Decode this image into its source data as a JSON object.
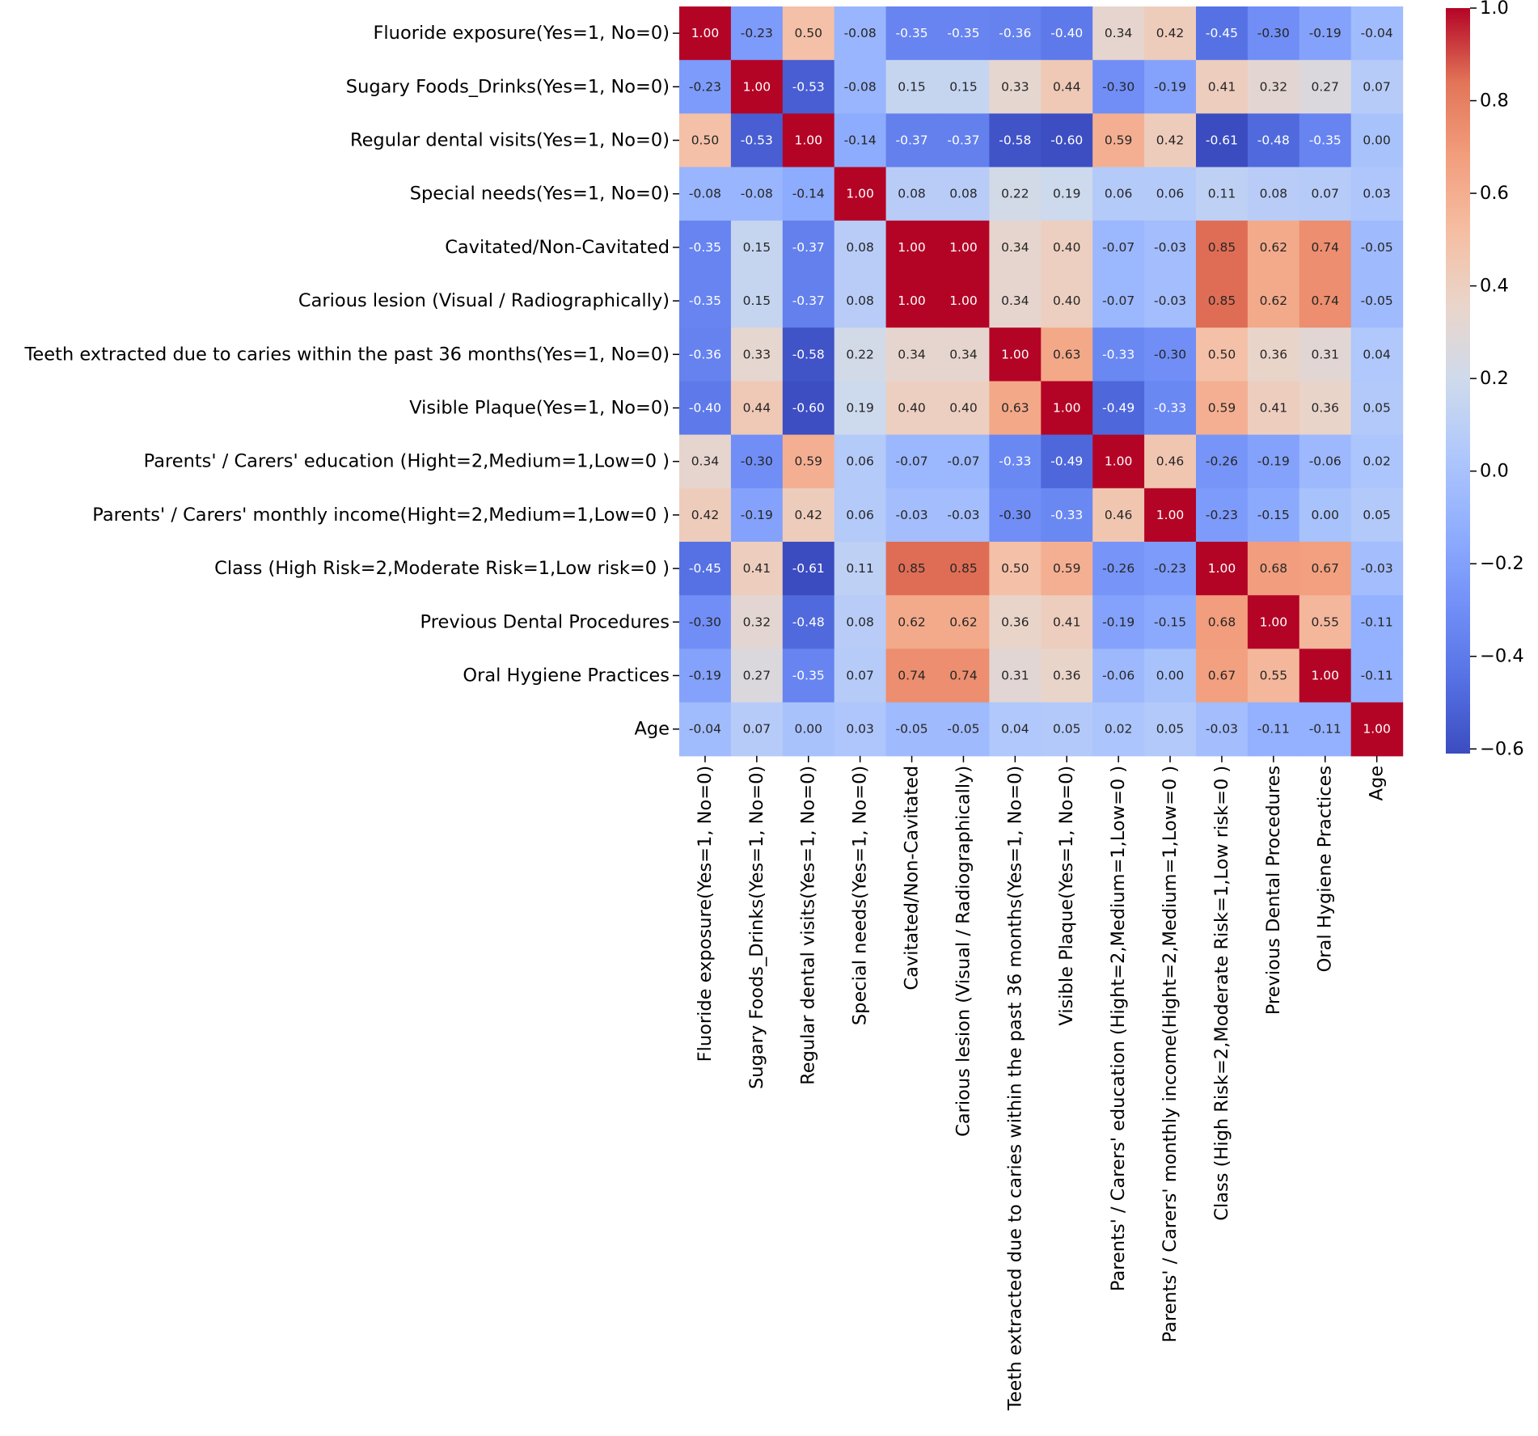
{
  "chart_data": {
    "type": "heatmap",
    "title": "",
    "xlabel": "",
    "ylabel": "",
    "colormap": "coolwarm",
    "vmin": -0.61,
    "vmax": 1.0,
    "labels": [
      "Fluoride exposure(Yes=1, No=0)",
      "Sugary Foods_Drinks(Yes=1, No=0)",
      "Regular dental visits(Yes=1, No=0)",
      "Special needs(Yes=1, No=0)",
      "Cavitated/Non-Cavitated",
      "Carious lesion (Visual / Radiographically)",
      "Teeth extracted due to caries within the past 36 months(Yes=1, No=0)",
      "Visible Plaque(Yes=1, No=0)",
      "Parents' / Carers' education (Hight=2,Medium=1,Low=0 )",
      "Parents' / Carers' monthly income(Hight=2,Medium=1,Low=0 )",
      "Class (High Risk=2,Moderate Risk=1,Low risk=0 )",
      "Previous Dental Procedures",
      "Oral Hygiene Practices",
      "Age"
    ],
    "values": [
      [
        1.0,
        -0.23,
        0.5,
        -0.08,
        -0.35,
        -0.35,
        -0.36,
        -0.4,
        0.34,
        0.42,
        -0.45,
        -0.3,
        -0.19,
        -0.04
      ],
      [
        -0.23,
        1.0,
        -0.53,
        -0.08,
        0.15,
        0.15,
        0.33,
        0.44,
        -0.3,
        -0.19,
        0.41,
        0.32,
        0.27,
        0.07
      ],
      [
        0.5,
        -0.53,
        1.0,
        -0.14,
        -0.37,
        -0.37,
        -0.58,
        -0.6,
        0.59,
        0.42,
        -0.61,
        -0.48,
        -0.35,
        0.0
      ],
      [
        -0.08,
        -0.08,
        -0.14,
        1.0,
        0.08,
        0.08,
        0.22,
        0.19,
        0.06,
        0.06,
        0.11,
        0.08,
        0.07,
        0.03
      ],
      [
        -0.35,
        0.15,
        -0.37,
        0.08,
        1.0,
        1.0,
        0.34,
        0.4,
        -0.07,
        -0.03,
        0.85,
        0.62,
        0.74,
        -0.05
      ],
      [
        -0.35,
        0.15,
        -0.37,
        0.08,
        1.0,
        1.0,
        0.34,
        0.4,
        -0.07,
        -0.03,
        0.85,
        0.62,
        0.74,
        -0.05
      ],
      [
        -0.36,
        0.33,
        -0.58,
        0.22,
        0.34,
        0.34,
        1.0,
        0.63,
        -0.33,
        -0.3,
        0.5,
        0.36,
        0.31,
        0.04
      ],
      [
        -0.4,
        0.44,
        -0.6,
        0.19,
        0.4,
        0.4,
        0.63,
        1.0,
        -0.49,
        -0.33,
        0.59,
        0.41,
        0.36,
        0.05
      ],
      [
        0.34,
        -0.3,
        0.59,
        0.06,
        -0.07,
        -0.07,
        -0.33,
        -0.49,
        1.0,
        0.46,
        -0.26,
        -0.19,
        -0.06,
        0.02
      ],
      [
        0.42,
        -0.19,
        0.42,
        0.06,
        -0.03,
        -0.03,
        -0.3,
        -0.33,
        0.46,
        1.0,
        -0.23,
        -0.15,
        -0.0,
        0.05
      ],
      [
        -0.45,
        0.41,
        -0.61,
        0.11,
        0.85,
        0.85,
        0.5,
        0.59,
        -0.26,
        -0.23,
        1.0,
        0.68,
        0.67,
        -0.03
      ],
      [
        -0.3,
        0.32,
        -0.48,
        0.08,
        0.62,
        0.62,
        0.36,
        0.41,
        -0.19,
        -0.15,
        0.68,
        1.0,
        0.55,
        -0.11
      ],
      [
        -0.19,
        0.27,
        -0.35,
        0.07,
        0.74,
        0.74,
        0.31,
        0.36,
        -0.06,
        -0.0,
        0.67,
        0.55,
        1.0,
        -0.11
      ],
      [
        -0.04,
        0.07,
        0.0,
        0.03,
        -0.05,
        -0.05,
        0.04,
        0.05,
        0.02,
        0.05,
        -0.03,
        -0.11,
        -0.11,
        1.0
      ]
    ],
    "colorbar": {
      "ticks": [
        1.0,
        0.8,
        0.6,
        0.4,
        0.2,
        0.0,
        -0.2,
        -0.4,
        -0.6
      ],
      "tick_labels": [
        "1.0",
        "0.8",
        "0.6",
        "0.4",
        "0.2",
        "0.0",
        "−0.2",
        "−0.4",
        "−0.6"
      ]
    }
  }
}
